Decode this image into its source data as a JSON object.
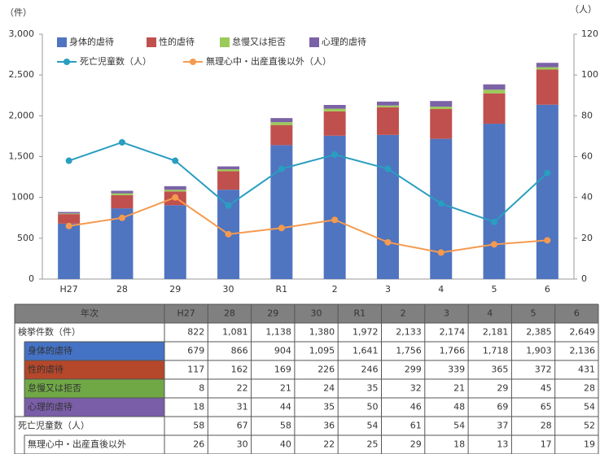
{
  "chart_data": {
    "type": "bar",
    "ylabel": "（件）",
    "y2label": "（人）",
    "categories": [
      "H27",
      "28",
      "29",
      "30",
      "R1",
      "2",
      "3",
      "4",
      "5",
      "6"
    ],
    "series": [
      {
        "name": "身体的虐待",
        "color": "#4f74c0",
        "values": [
          679,
          866,
          904,
          1095,
          1641,
          1756,
          1766,
          1718,
          1903,
          2136
        ]
      },
      {
        "name": "性的虐待",
        "color": "#c0504d",
        "values": [
          117,
          162,
          169,
          226,
          246,
          299,
          339,
          365,
          372,
          431
        ]
      },
      {
        "name": "怠慢又は拒否",
        "color": "#9bca5a",
        "values": [
          8,
          22,
          21,
          24,
          35,
          32,
          21,
          29,
          45,
          28
        ]
      },
      {
        "name": "心理的虐待",
        "color": "#7b62a6",
        "values": [
          18,
          31,
          44,
          35,
          50,
          46,
          48,
          69,
          65,
          54
        ]
      },
      {
        "name": "死亡児童数（人）",
        "type": "line",
        "axis": "y2",
        "color": "#2a9ec0",
        "values": [
          58,
          67,
          58,
          36,
          54,
          61,
          54,
          37,
          28,
          52
        ]
      },
      {
        "name": "無理心中・出産直後以外（人）",
        "type": "line",
        "axis": "y2",
        "color": "#f59a4f",
        "values": [
          26,
          30,
          40,
          22,
          25,
          29,
          18,
          13,
          17,
          19
        ]
      }
    ],
    "ylim": [
      0,
      3000
    ],
    "yticks": [
      0,
      500,
      1000,
      {
        "value": 1500,
        "label": "1,500"
      },
      {
        "value": 2000,
        "label": "2,000"
      },
      {
        "value": 2500,
        "label": "2,500"
      },
      {
        "value": 3000,
        "label": "3,000"
      }
    ],
    "y2lim": [
      0,
      120
    ],
    "y2ticks": [
      0,
      20,
      40,
      60,
      80,
      100,
      120
    ]
  },
  "table": {
    "header": "年次",
    "rows": [
      {
        "label": "検挙件数（件）",
        "cells": [
          "822",
          "1,081",
          "1,138",
          "1,380",
          "1,972",
          "2,133",
          "2,174",
          "2,181",
          "2,385",
          "2,649"
        ]
      },
      {
        "label": "身体的虐待",
        "cells": [
          "679",
          "866",
          "904",
          "1,095",
          "1,641",
          "1,756",
          "1,766",
          "1,718",
          "1,903",
          "2,136"
        ]
      },
      {
        "label": "性的虐待",
        "cells": [
          "117",
          "162",
          "169",
          "226",
          "246",
          "299",
          "339",
          "365",
          "372",
          "431"
        ]
      },
      {
        "label": "怠慢又は拒否",
        "cells": [
          "8",
          "22",
          "21",
          "24",
          "35",
          "32",
          "21",
          "29",
          "45",
          "28"
        ]
      },
      {
        "label": "心理的虐待",
        "cells": [
          "18",
          "31",
          "44",
          "35",
          "50",
          "46",
          "48",
          "69",
          "65",
          "54"
        ]
      },
      {
        "label": "死亡児童数（人）",
        "cells": [
          "58",
          "67",
          "58",
          "36",
          "54",
          "61",
          "54",
          "37",
          "28",
          "52"
        ]
      },
      {
        "label": "無理心中・出産直後以外",
        "cells": [
          "26",
          "30",
          "40",
          "22",
          "25",
          "29",
          "18",
          "13",
          "17",
          "19"
        ]
      }
    ]
  }
}
